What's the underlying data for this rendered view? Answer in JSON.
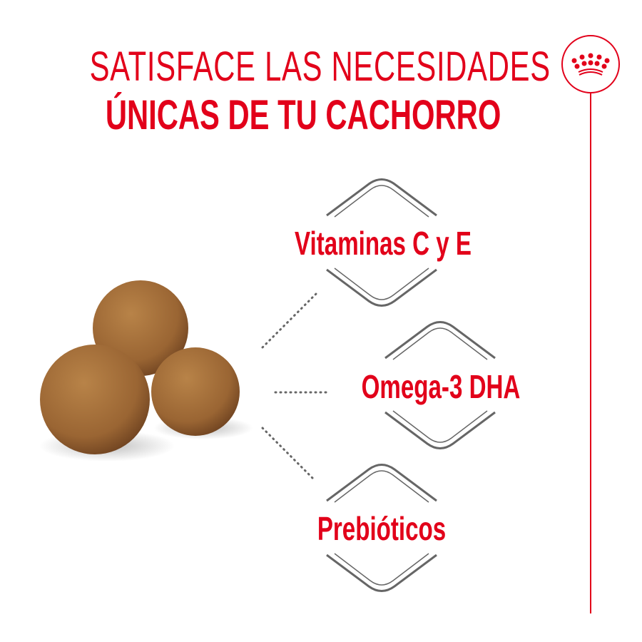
{
  "header": {
    "title_line1": "SATISFACE LAS NECESIDADES",
    "title_line2": "ÚNICAS DE TU CACHORRO"
  },
  "logo": {
    "icon": "crown-icon"
  },
  "benefits": [
    {
      "label": "Vitaminas C y E"
    },
    {
      "label": "Omega-3 DHA"
    },
    {
      "label": "Prebióticos"
    }
  ],
  "colors": {
    "brand_red": "#e2001a",
    "frame_gray": "#666666",
    "kibble_brown": "#9c6a36"
  }
}
